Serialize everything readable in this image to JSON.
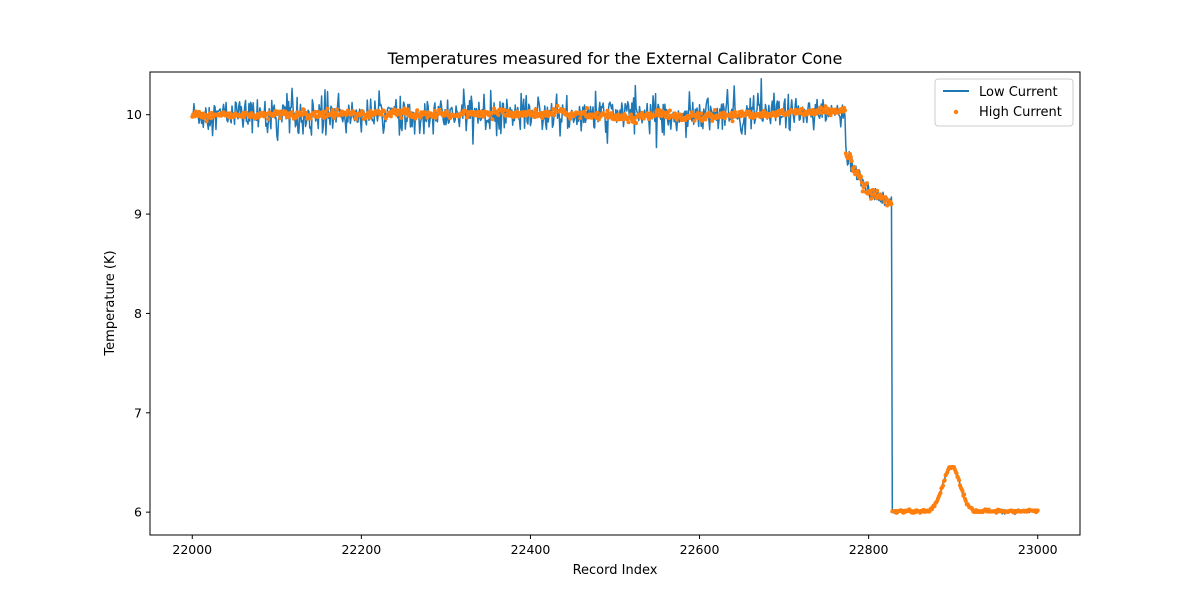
{
  "chart_data": {
    "type": "line",
    "title": "Temperatures measured for the External Calibrator Cone",
    "xlabel": "Record Index",
    "ylabel": "Temperature (K)",
    "xlim": [
      21950,
      23050
    ],
    "ylim": [
      5.77,
      10.43
    ],
    "x_ticks": [
      22000,
      22200,
      22400,
      22600,
      22800,
      23000
    ],
    "y_ticks": [
      6,
      7,
      8,
      9,
      10
    ],
    "grid": false,
    "legend_position": "top-right",
    "series": [
      {
        "name": "Low Current",
        "style": "line",
        "color": "#1f77b4",
        "segments": [
          {
            "x_start": 22000,
            "x_end": 22772,
            "base": 10.0,
            "noise": 0.08,
            "spike_rate": 0.1,
            "spike_amp": 0.18
          },
          {
            "x_start": 22773,
            "x_end": 22827,
            "profile": "decline",
            "from": 9.6,
            "mid": 9.22,
            "to": 9.12,
            "noise": 0.05
          },
          {
            "x_start": 22828,
            "x_end": 23000,
            "base": 6.01,
            "bump_center": 22898,
            "bump_width": 16,
            "bump_amp": 0.45,
            "noise": 0.01
          }
        ]
      },
      {
        "name": "High Current",
        "style": "scatter",
        "color": "#ff7f0e",
        "segments": [
          {
            "x_start": 22000,
            "x_end": 22772,
            "base": 10.0,
            "noise": 0.02
          },
          {
            "x_start": 22773,
            "x_end": 22827,
            "profile": "decline",
            "from": 9.6,
            "mid": 9.22,
            "to": 9.12,
            "noise": 0.03
          },
          {
            "x_start": 22828,
            "x_end": 23000,
            "base": 6.01,
            "bump_center": 22898,
            "bump_width": 16,
            "bump_amp": 0.45,
            "noise": 0.008
          }
        ]
      }
    ]
  }
}
